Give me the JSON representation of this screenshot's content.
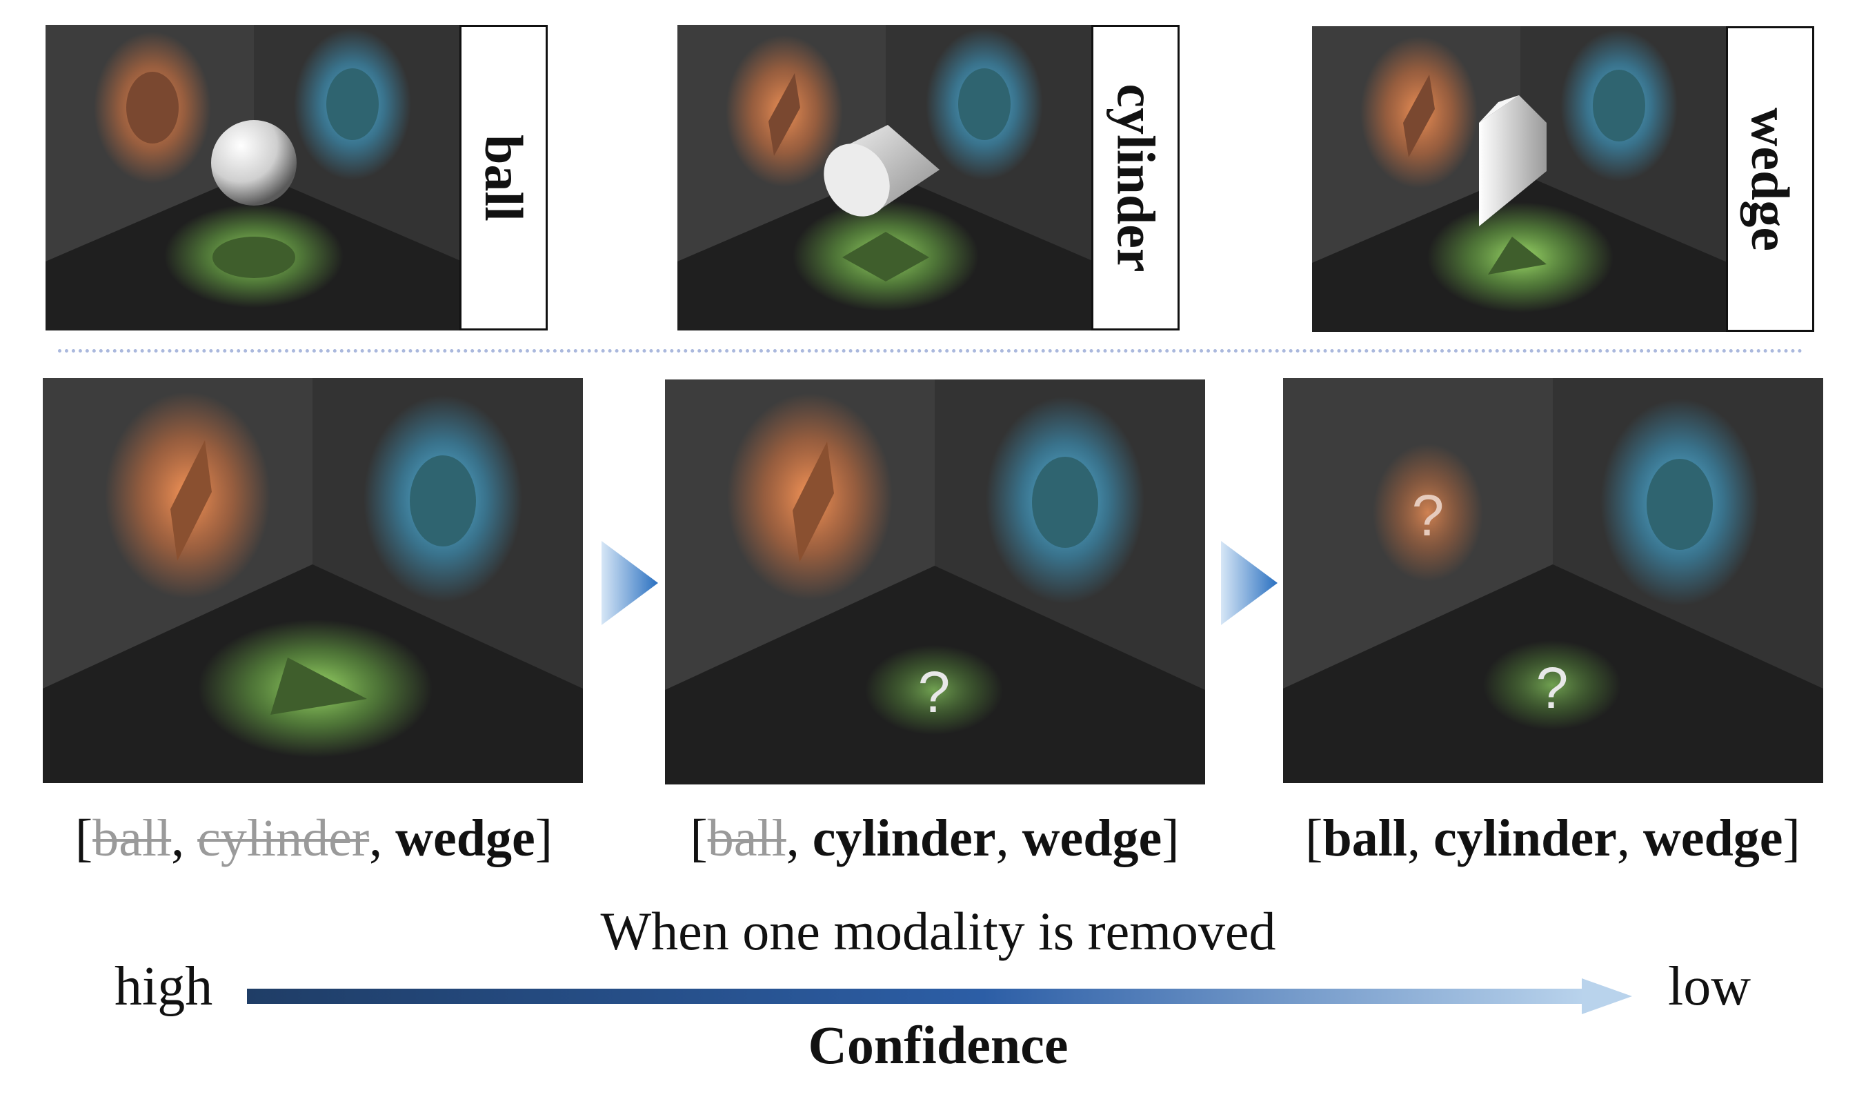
{
  "top_row": [
    {
      "object": "ball",
      "label": "ball"
    },
    {
      "object": "cylinder",
      "label": "cylinder"
    },
    {
      "object": "wedge",
      "label": "wedge"
    }
  ],
  "bottom_row": [
    {
      "orange": "rhombus",
      "blue": "ellipse",
      "green": "triangle"
    },
    {
      "orange": "rhombus",
      "blue": "ellipse",
      "green": "?"
    },
    {
      "orange": "?",
      "blue": "ellipse",
      "green": "?"
    }
  ],
  "captions": [
    {
      "open": "[",
      "items": [
        {
          "text": "ball",
          "struck": true,
          "sep": ", "
        },
        {
          "text": "cylinder",
          "struck": true,
          "sep": ", "
        },
        {
          "text": "wedge",
          "struck": false,
          "sep": ""
        }
      ],
      "close": "]"
    },
    {
      "open": "[",
      "items": [
        {
          "text": "ball",
          "struck": true,
          "sep": ", "
        },
        {
          "text": "cylinder",
          "struck": false,
          "sep": ", "
        },
        {
          "text": "wedge",
          "struck": false,
          "sep": ""
        }
      ],
      "close": "]"
    },
    {
      "open": "[",
      "items": [
        {
          "text": "ball",
          "struck": false,
          "sep": ", "
        },
        {
          "text": "cylinder",
          "struck": false,
          "sep": ", "
        },
        {
          "text": "wedge",
          "struck": false,
          "sep": ""
        }
      ],
      "close": "]"
    }
  ],
  "axis": {
    "title": "When one modality is removed",
    "left_label": "high",
    "right_label": "low",
    "name": "Confidence"
  },
  "colors": {
    "orange": "#e8884f",
    "blue": "#4fb0d6",
    "green": "#7fc25a",
    "arrow_dark": "#1f3d66",
    "arrow_light": "#b9d3ec",
    "struck": "#9a9a9a",
    "divider": "#aab8dd"
  }
}
